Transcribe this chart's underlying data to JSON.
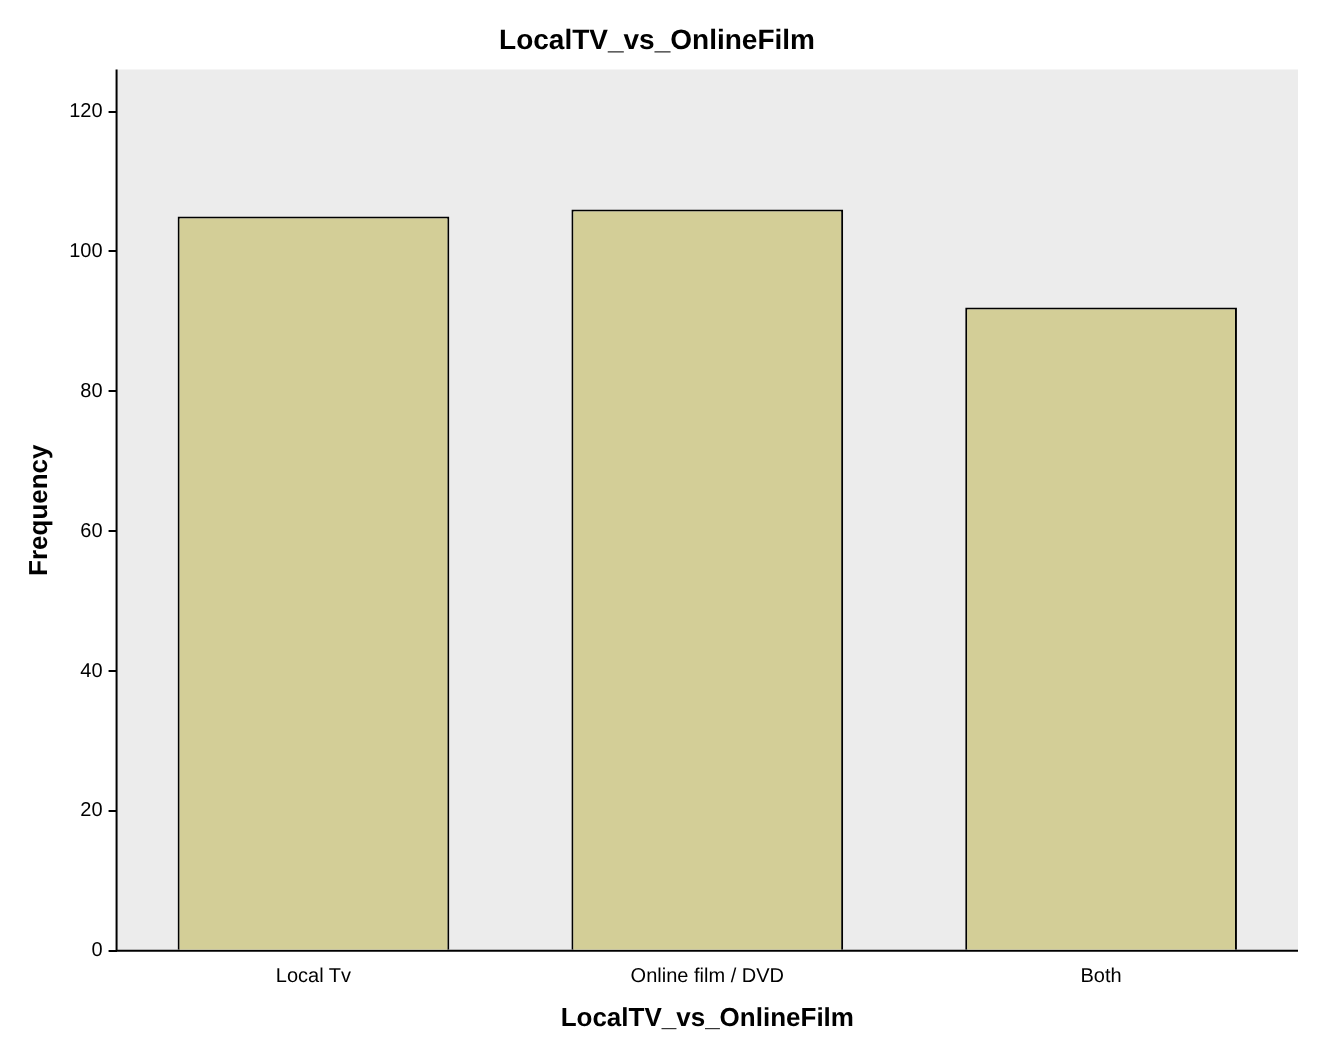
{
  "chart_data": {
    "type": "bar",
    "title": "LocalTV_vs_OnlineFilm",
    "xlabel": "LocalTV_vs_OnlineFilm",
    "ylabel": "Frequency",
    "categories": [
      "Local Tv",
      "Online film / DVD",
      "Both"
    ],
    "values": [
      105,
      106,
      92
    ],
    "color": "#d3ce97",
    "ylim": [
      0,
      126
    ],
    "yticks": [
      0,
      20,
      40,
      60,
      80,
      100,
      120
    ],
    "grid": false,
    "legend": false
  }
}
